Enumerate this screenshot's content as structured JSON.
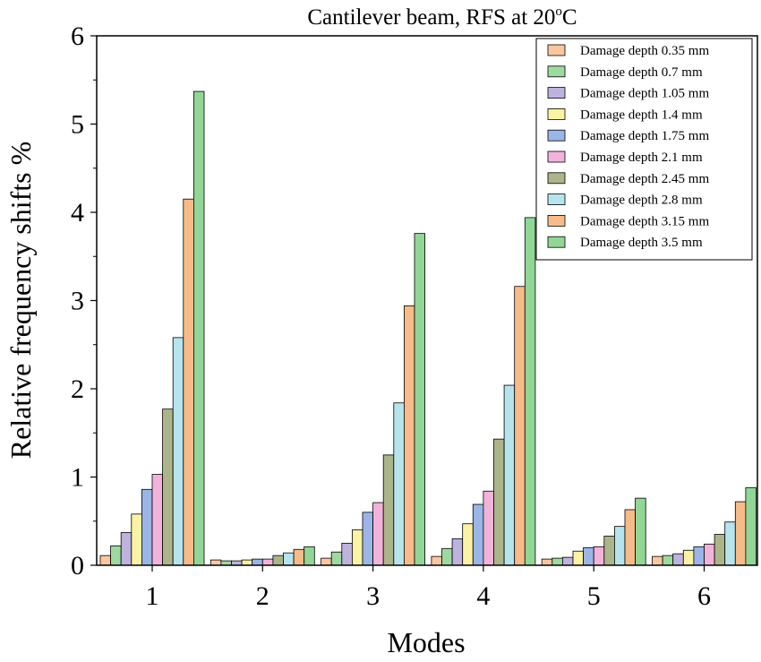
{
  "chart_data": {
    "type": "bar",
    "title": "Cantilever beam, RFS at 20",
    "title_superscript": "o",
    "title_suffix": "C",
    "xlabel": "Modes",
    "ylabel": "Relative frequency shifts %",
    "ylim": [
      0,
      6
    ],
    "yticks": [
      "0",
      "1",
      "2",
      "3",
      "4",
      "5",
      "6"
    ],
    "categories": [
      "1",
      "2",
      "3",
      "4",
      "5",
      "6"
    ],
    "legend_position": "top-right",
    "series": [
      {
        "name": "Damage depth 0.35 mm",
        "color": "#F8C7A2",
        "values": [
          0.11,
          0.06,
          0.08,
          0.1,
          0.07,
          0.1
        ]
      },
      {
        "name": "Damage depth 0.7 mm",
        "color": "#9ED9A0",
        "values": [
          0.22,
          0.05,
          0.15,
          0.19,
          0.08,
          0.11
        ]
      },
      {
        "name": "Damage depth 1.05 mm",
        "color": "#BEB3DE",
        "values": [
          0.37,
          0.05,
          0.25,
          0.3,
          0.09,
          0.13
        ]
      },
      {
        "name": "Damage depth 1.4 mm",
        "color": "#FAF2A4",
        "values": [
          0.58,
          0.06,
          0.4,
          0.47,
          0.16,
          0.17
        ]
      },
      {
        "name": "Damage depth 1.75 mm",
        "color": "#9BB6E6",
        "values": [
          0.86,
          0.07,
          0.6,
          0.69,
          0.2,
          0.21
        ]
      },
      {
        "name": "Damage depth 2.1 mm",
        "color": "#F2B3DB",
        "values": [
          1.03,
          0.07,
          0.71,
          0.84,
          0.21,
          0.24
        ]
      },
      {
        "name": "Damage depth 2.45 mm",
        "color": "#ACB48A",
        "values": [
          1.77,
          0.11,
          1.25,
          1.43,
          0.33,
          0.35
        ]
      },
      {
        "name": "Damage depth 2.8 mm",
        "color": "#B6E4EC",
        "values": [
          2.58,
          0.14,
          1.84,
          2.04,
          0.44,
          0.49
        ]
      },
      {
        "name": "Damage depth 3.15 mm",
        "color": "#F6BB88",
        "values": [
          4.15,
          0.18,
          2.94,
          3.16,
          0.63,
          0.72
        ]
      },
      {
        "name": "Damage depth 3.5 mm",
        "color": "#92D696",
        "values": [
          5.37,
          0.21,
          3.76,
          3.94,
          0.76,
          0.88
        ]
      }
    ]
  }
}
